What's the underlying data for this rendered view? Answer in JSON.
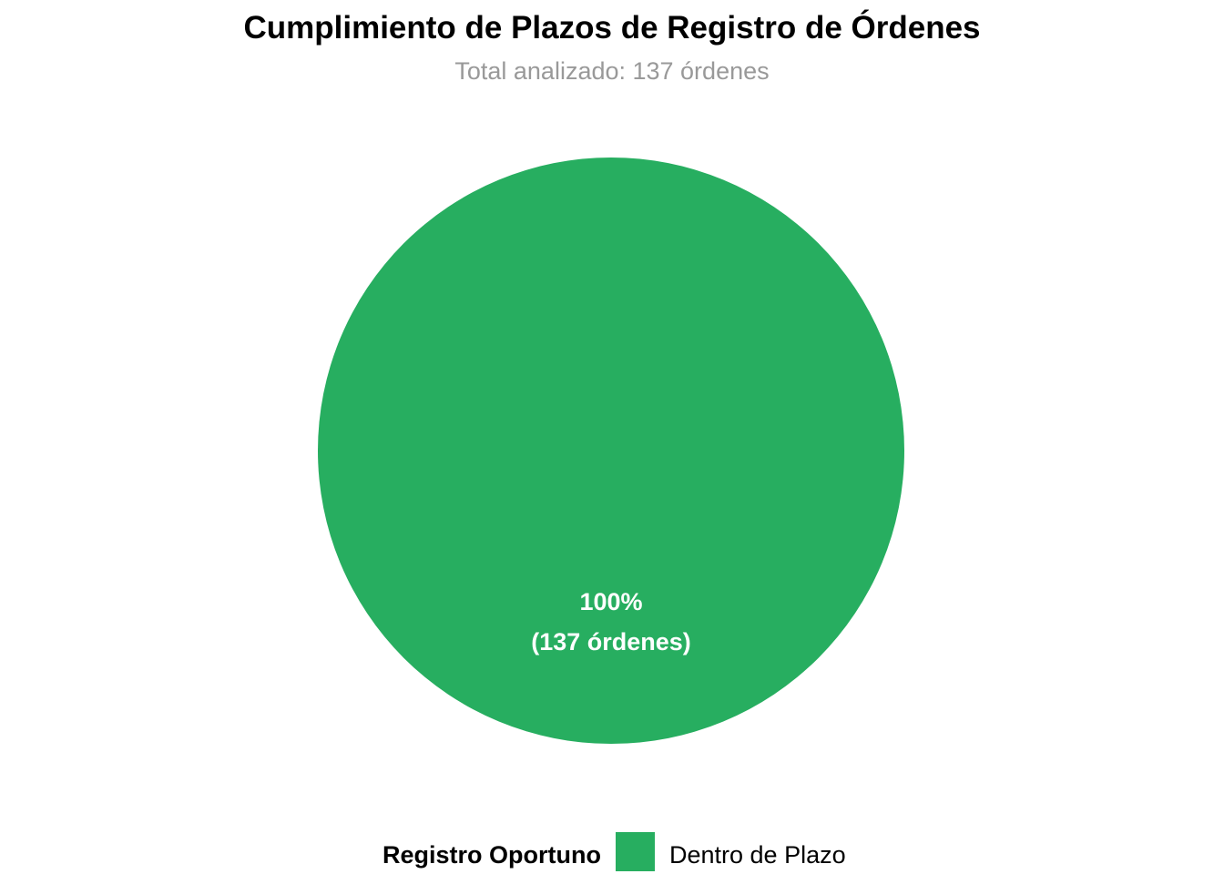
{
  "chart_data": {
    "type": "pie",
    "title": "Cumplimiento de Plazos de Registro de Órdenes",
    "subtitle": "Total analizado: 137 órdenes",
    "slices": [
      {
        "name": "Dentro de Plazo",
        "value": 137,
        "percent": 100,
        "color": "#27AE60",
        "label_percent": "100%",
        "label_count": "(137 órdenes)"
      }
    ],
    "legend": {
      "title": "Registro Oportuno",
      "position": "bottom",
      "entries": [
        "Dentro de Plazo"
      ]
    }
  }
}
